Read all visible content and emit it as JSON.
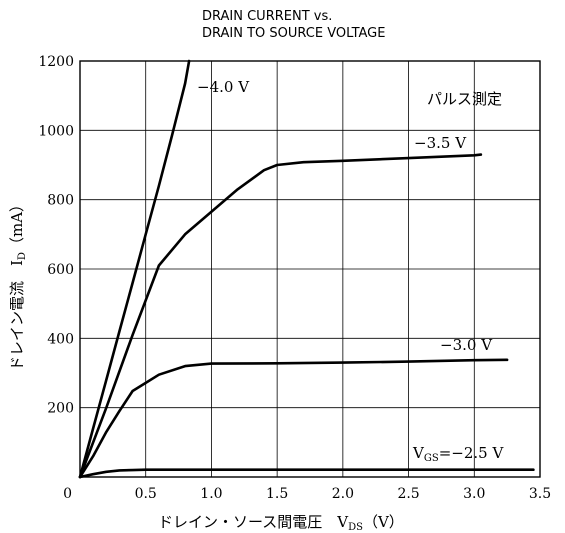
{
  "chart_data": {
    "type": "line",
    "title": [
      "DRAIN CURRENT vs.",
      "DRAIN TO SOURCE VOLTAGE"
    ],
    "annotation": "パルス測定",
    "xlabel": "ドレイン・ソース間電圧　V_DS（V）",
    "xlabel_parts": {
      "main": "ドレイン・ソース間電圧　V",
      "sub": "DS",
      "unit": "（V）"
    },
    "ylabel": "ドレイン電流　I_D（mA）",
    "ylabel_parts": {
      "main": "ドレイン電流　I",
      "sub": "D",
      "unit": "（mA）"
    },
    "xlim": [
      0,
      3.5
    ],
    "ylim": [
      0,
      1200
    ],
    "x_ticks": [
      "0",
      "0.5",
      "1.0",
      "1.5",
      "2.0",
      "2.5",
      "3.0",
      "3.5"
    ],
    "y_ticks": [
      "0",
      "200",
      "400",
      "600",
      "800",
      "1000",
      "1200"
    ],
    "grid": true,
    "series": [
      {
        "name": "−4.0 V",
        "label_text": "−4.0 V",
        "x": [
          0,
          0.1,
          0.2,
          0.3,
          0.4,
          0.5,
          0.6,
          0.7,
          0.8,
          0.83
        ],
        "y": [
          0,
          140,
          280,
          420,
          560,
          700,
          840,
          985,
          1135,
          1200
        ]
      },
      {
        "name": "−3.5 V",
        "label_text": "−3.5 V",
        "x": [
          0,
          0.2,
          0.4,
          0.6,
          0.8,
          1.0,
          1.2,
          1.4,
          1.5,
          1.7,
          2.0,
          2.5,
          3.0,
          3.05
        ],
        "y": [
          0,
          200,
          410,
          610,
          700,
          765,
          830,
          885,
          900,
          908,
          912,
          920,
          928,
          930
        ]
      },
      {
        "name": "−3.0 V",
        "label_text": "−3.0 V",
        "x": [
          0,
          0.1,
          0.2,
          0.3,
          0.4,
          0.6,
          0.8,
          1.0,
          1.5,
          2.0,
          2.5,
          3.0,
          3.25
        ],
        "y": [
          0,
          60,
          130,
          190,
          248,
          295,
          320,
          327,
          328,
          330,
          333,
          337,
          338
        ]
      },
      {
        "name": "VGS = −2.5 V",
        "label_text": "=−2.5 V",
        "label_prefix_main": "V",
        "label_prefix_sub": "GS",
        "x": [
          0,
          0.1,
          0.2,
          0.3,
          0.4,
          0.5,
          1.0,
          2.0,
          3.0,
          3.45
        ],
        "y": [
          0,
          8,
          15,
          19,
          20,
          21,
          21,
          21,
          21,
          21
        ]
      }
    ]
  }
}
